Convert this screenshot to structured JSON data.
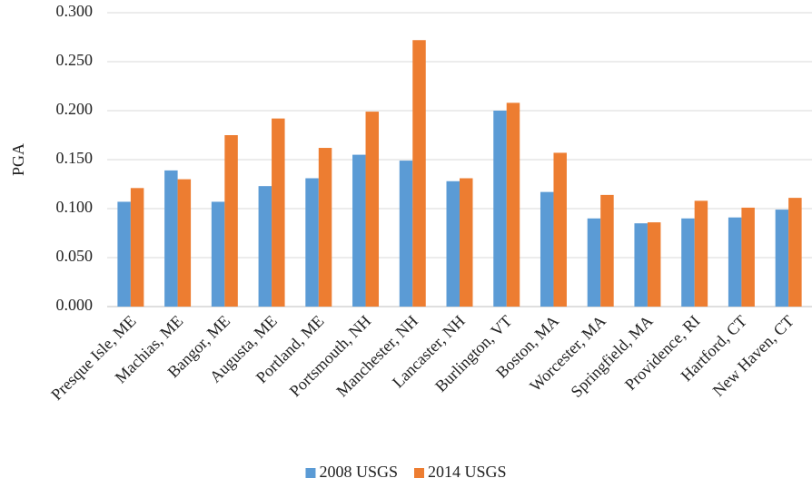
{
  "chart_data": {
    "type": "bar",
    "ylabel": "PGA",
    "categories": [
      "Presque Isle, ME",
      "Machias, ME",
      "Bangor, ME",
      "Augusta, ME",
      "Portland, ME",
      "Portsmouth, NH",
      "Manchester, NH",
      "Lancaster, NH",
      "Burlington, VT",
      "Boston, MA",
      "Worcester, MA",
      "Springfield, MA",
      "Providence, RI",
      "Hartford, CT",
      "New Haven, CT"
    ],
    "series": [
      {
        "name": "2008 USGS",
        "color": "#5b9bd5",
        "values": [
          0.107,
          0.139,
          0.107,
          0.123,
          0.131,
          0.155,
          0.149,
          0.128,
          0.2,
          0.117,
          0.09,
          0.085,
          0.09,
          0.091,
          0.099
        ]
      },
      {
        "name": "2014 USGS",
        "color": "#ed7d31",
        "values": [
          0.121,
          0.13,
          0.175,
          0.192,
          0.162,
          0.199,
          0.272,
          0.131,
          0.208,
          0.157,
          0.114,
          0.086,
          0.108,
          0.101,
          0.111
        ]
      }
    ],
    "ylim": [
      0,
      0.3
    ],
    "yticks": [
      {
        "value": 0,
        "label": "0.000"
      },
      {
        "value": 0.05,
        "label": "0.050"
      },
      {
        "value": 0.1,
        "label": "0.100"
      },
      {
        "value": 0.15,
        "label": "0.150"
      },
      {
        "value": 0.2,
        "label": "0.200"
      },
      {
        "value": 0.25,
        "label": "0.250"
      },
      {
        "value": 0.3,
        "label": "0.300"
      }
    ],
    "grid": true,
    "legend": "bottom"
  }
}
